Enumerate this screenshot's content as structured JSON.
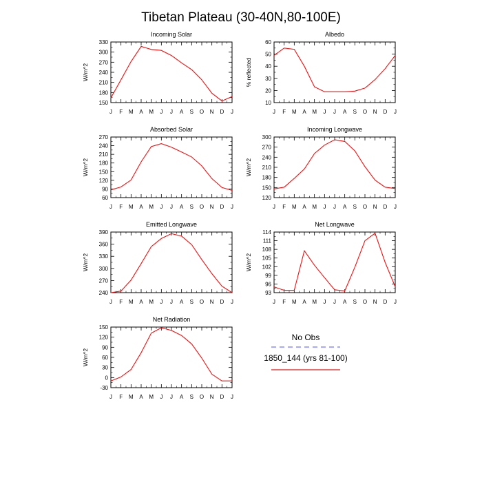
{
  "figure": {
    "title": "Tibetan Plateau (30-40N,80-100E)"
  },
  "legend": {
    "obs_label": "No Obs",
    "model_label": "1850_144 (yrs 81-100)",
    "obs_color": "#7777ee",
    "model_color": "#ee1111"
  },
  "colors": {
    "line": "#ee1111",
    "axis": "#000000"
  },
  "chart_data": [
    {
      "type": "line",
      "title": "Incoming Solar",
      "ylabel": "W/m^2",
      "categories": [
        "J",
        "F",
        "M",
        "A",
        "M",
        "J",
        "J",
        "A",
        "S",
        "O",
        "N",
        "D",
        "J"
      ],
      "ylim": [
        150,
        330
      ],
      "yticks": [
        150,
        180,
        210,
        240,
        270,
        300,
        330
      ],
      "series": [
        {
          "values": [
            164,
            218,
            272,
            317,
            308,
            305,
            290,
            268,
            248,
            218,
            178,
            155,
            168
          ]
        }
      ]
    },
    {
      "type": "line",
      "title": "Albedo",
      "ylabel": "% reflected",
      "categories": [
        "J",
        "F",
        "M",
        "A",
        "M",
        "J",
        "J",
        "A",
        "S",
        "O",
        "N",
        "D",
        "J"
      ],
      "ylim": [
        10,
        60
      ],
      "yticks": [
        10,
        20,
        30,
        40,
        50,
        60
      ],
      "series": [
        {
          "values": [
            49,
            55,
            54,
            40,
            23,
            19,
            19,
            19,
            19.5,
            22,
            29,
            38,
            49
          ]
        }
      ]
    },
    {
      "type": "line",
      "title": "Absorbed Solar",
      "ylabel": "W/m^2",
      "categories": [
        "J",
        "F",
        "M",
        "A",
        "M",
        "J",
        "J",
        "A",
        "S",
        "O",
        "N",
        "D",
        "J"
      ],
      "ylim": [
        60,
        270
      ],
      "yticks": [
        60,
        90,
        120,
        150,
        180,
        210,
        240,
        270
      ],
      "series": [
        {
          "values": [
            87,
            97,
            121,
            184,
            237,
            247,
            235,
            218,
            201,
            170,
            126,
            95,
            85
          ]
        }
      ]
    },
    {
      "type": "line",
      "title": "Incoming Longwave",
      "ylabel": "W/m^2",
      "categories": [
        "J",
        "F",
        "M",
        "A",
        "M",
        "J",
        "J",
        "A",
        "S",
        "O",
        "N",
        "D",
        "J"
      ],
      "ylim": [
        120,
        300
      ],
      "yticks": [
        120,
        150,
        180,
        210,
        240,
        270,
        300
      ],
      "series": [
        {
          "values": [
            146,
            151,
            177,
            205,
            251,
            276,
            292,
            287,
            259,
            212,
            172,
            151,
            147
          ]
        }
      ]
    },
    {
      "type": "line",
      "title": "Emitted Longwave",
      "ylabel": "W/m^2",
      "categories": [
        "J",
        "F",
        "M",
        "A",
        "M",
        "J",
        "J",
        "A",
        "S",
        "O",
        "N",
        "D",
        "J"
      ],
      "ylim": [
        240,
        390
      ],
      "yticks": [
        240,
        270,
        300,
        330,
        360,
        390
      ],
      "series": [
        {
          "values": [
            240,
            244,
            271,
            312,
            354,
            374,
            386,
            380,
            359,
            322,
            287,
            256,
            240
          ]
        }
      ]
    },
    {
      "type": "line",
      "title": "Net Longwave",
      "ylabel": "W/m^2",
      "categories": [
        "J",
        "F",
        "M",
        "A",
        "M",
        "J",
        "J",
        "A",
        "S",
        "O",
        "N",
        "D",
        "J"
      ],
      "ylim": [
        93,
        114
      ],
      "yticks": [
        93,
        96,
        99,
        102,
        105,
        108,
        111,
        114
      ],
      "series": [
        {
          "values": [
            95,
            93.8,
            93.8,
            107.5,
            102.5,
            98.2,
            94,
            93.6,
            101.8,
            111,
            113.6,
            103.5,
            95
          ]
        }
      ]
    },
    {
      "type": "line",
      "title": "Net Radiation",
      "ylabel": "W/m^2",
      "categories": [
        "J",
        "F",
        "M",
        "A",
        "M",
        "J",
        "J",
        "A",
        "S",
        "O",
        "N",
        "D",
        "J"
      ],
      "ylim": [
        -30,
        150
      ],
      "yticks": [
        -30,
        0,
        30,
        60,
        90,
        120,
        150
      ],
      "series": [
        {
          "values": [
            -10,
            2,
            24,
            74,
            132,
            148,
            140,
            125,
            100,
            58,
            10,
            -10,
            -10
          ]
        }
      ]
    }
  ]
}
